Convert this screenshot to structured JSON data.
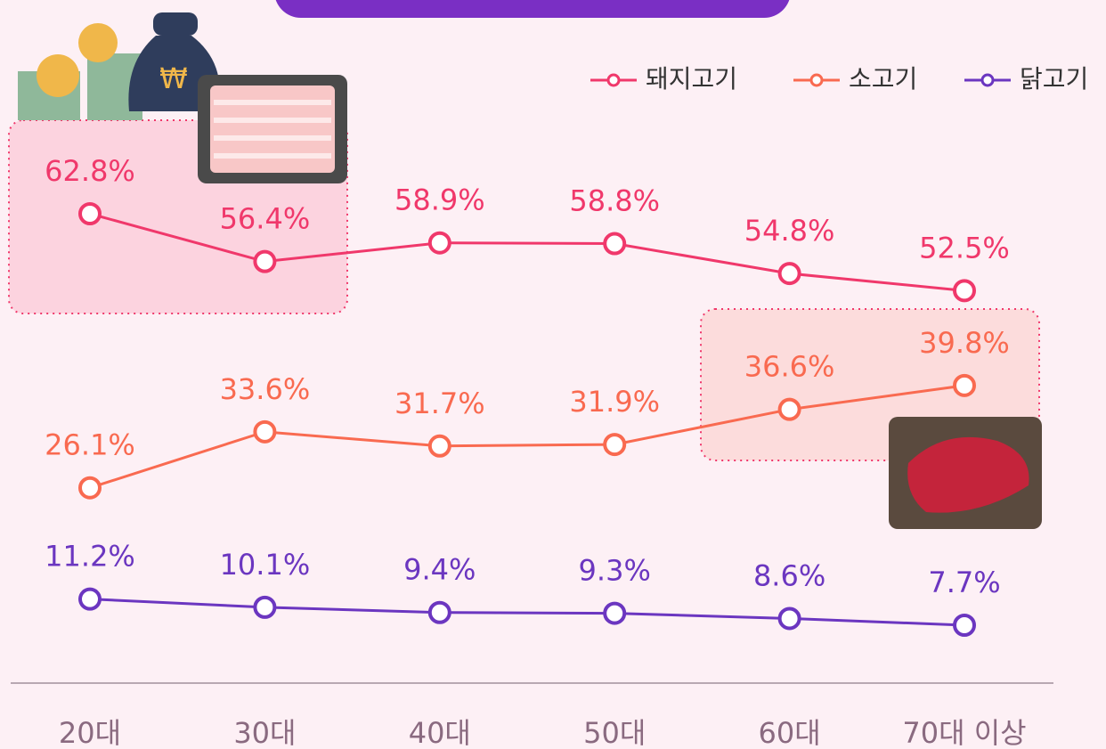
{
  "chart_data": {
    "type": "line",
    "categories": [
      "20대",
      "30대",
      "40대",
      "50대",
      "60대",
      "70대 이상"
    ],
    "series": [
      {
        "name": "돼지고기",
        "color": "#f0386b",
        "values": [
          62.8,
          56.4,
          58.9,
          58.8,
          54.8,
          52.5
        ],
        "value_labels": [
          "62.8%",
          "56.4%",
          "58.9%",
          "58.8%",
          "54.8%",
          "52.5%"
        ]
      },
      {
        "name": "소고기",
        "color": "#f96a50",
        "values": [
          26.1,
          33.6,
          31.7,
          31.9,
          36.6,
          39.8
        ],
        "value_labels": [
          "26.1%",
          "33.6%",
          "31.7%",
          "31.9%",
          "36.6%",
          "39.8%"
        ]
      },
      {
        "name": "닭고기",
        "color": "#6b36c0",
        "values": [
          11.2,
          10.1,
          9.4,
          9.3,
          8.6,
          7.7
        ],
        "value_labels": [
          "11.2%",
          "10.1%",
          "9.4%",
          "9.3%",
          "8.6%",
          "7.7%"
        ]
      }
    ],
    "legend": "top-right"
  }
}
